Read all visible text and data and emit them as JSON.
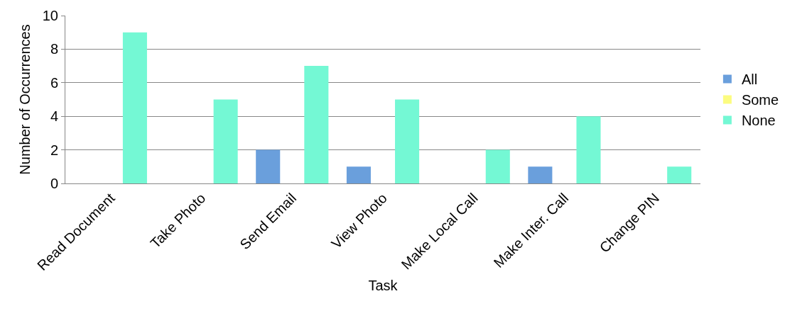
{
  "chart_data": {
    "type": "bar",
    "xlabel": "Task",
    "ylabel": "Number of Occurrences",
    "categories": [
      "Read Document",
      "Take Photo",
      "Send Email",
      "View Photo",
      "Make Local Call",
      "Make Inter. Call",
      "Change PIN"
    ],
    "series": [
      {
        "name": "All",
        "color": "#6a9fdc",
        "values": [
          0,
          0,
          2,
          1,
          0,
          1,
          0
        ]
      },
      {
        "name": "Some",
        "color": "#fcfc80",
        "values": [
          0,
          0,
          0,
          0,
          0,
          0,
          0
        ]
      },
      {
        "name": "None",
        "color": "#74f8d4",
        "values": [
          9,
          5,
          7,
          5,
          2,
          4,
          1
        ]
      }
    ],
    "ylim": [
      0,
      10
    ],
    "yticks": [
      0,
      2,
      4,
      6,
      8,
      10
    ],
    "grid": "y",
    "legend": "right"
  }
}
